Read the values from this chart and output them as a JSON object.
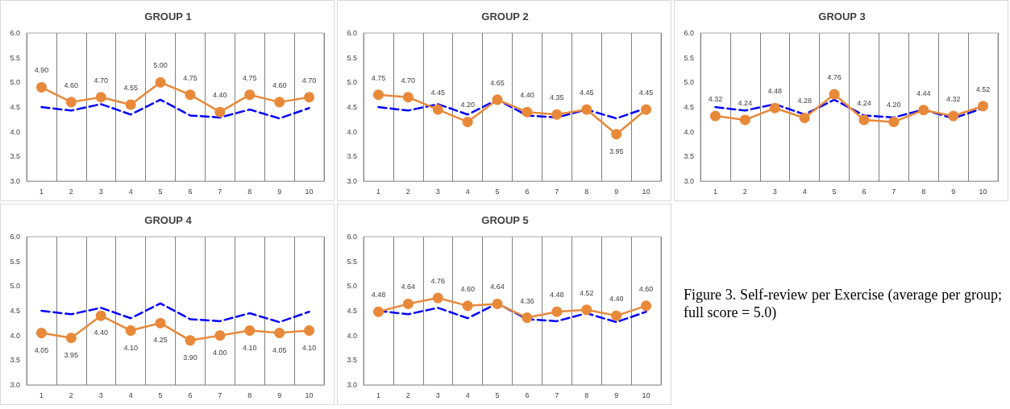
{
  "chart_data": [
    {
      "type": "line",
      "title": "GROUP 1",
      "categories": [
        "1",
        "2",
        "3",
        "4",
        "5",
        "6",
        "7",
        "8",
        "9",
        "10"
      ],
      "ylim": [
        3,
        6
      ],
      "yticks": [
        {
          "value": 3,
          "label": "3.0"
        },
        {
          "value": 3.5,
          "label": "3.5"
        },
        {
          "value": 4,
          "label": "4.0"
        },
        {
          "value": 4.5,
          "label": "4.5"
        },
        {
          "value": 5,
          "label": "5.0"
        },
        {
          "value": 5.5,
          "label": "5.5"
        },
        {
          "value": 6,
          "label": "6.0"
        }
      ],
      "grid": "x",
      "series": [
        {
          "color": "#0000ff",
          "line_style": "dashed",
          "marker": "none",
          "values": [
            4.5,
            4.43,
            4.56,
            4.35,
            4.65,
            4.33,
            4.29,
            4.45,
            4.27,
            4.48
          ]
        },
        {
          "color": "#e8893a",
          "line_style": "solid",
          "marker": "circle",
          "values": [
            4.9,
            4.6,
            4.7,
            4.55,
            5.0,
            4.75,
            4.4,
            4.75,
            4.6,
            4.7
          ],
          "value_labels": [
            "4.90",
            "4.60",
            "4.70",
            "4.55",
            "5.00",
            "4.75",
            "4.40",
            "4.75",
            "4.60",
            "4.70"
          ]
        }
      ]
    },
    {
      "type": "line",
      "title": "GROUP 2",
      "categories": [
        "1",
        "2",
        "3",
        "4",
        "5",
        "6",
        "7",
        "8",
        "9",
        "10"
      ],
      "ylim": [
        3,
        6
      ],
      "yticks": [
        {
          "value": 3,
          "label": "3.0"
        },
        {
          "value": 3.5,
          "label": "3.5"
        },
        {
          "value": 4,
          "label": "4.0"
        },
        {
          "value": 4.5,
          "label": "4.5"
        },
        {
          "value": 5,
          "label": "5.0"
        },
        {
          "value": 5.5,
          "label": "5.5"
        },
        {
          "value": 6,
          "label": "6.0"
        }
      ],
      "grid": "x",
      "series": [
        {
          "color": "#0000ff",
          "line_style": "dashed",
          "marker": "none",
          "values": [
            4.5,
            4.43,
            4.56,
            4.35,
            4.65,
            4.33,
            4.29,
            4.45,
            4.27,
            4.48
          ]
        },
        {
          "color": "#e8893a",
          "line_style": "solid",
          "marker": "circle",
          "values": [
            4.75,
            4.7,
            4.45,
            4.2,
            4.65,
            4.4,
            4.35,
            4.45,
            3.95,
            4.45
          ],
          "value_labels": [
            "4.75",
            "4.70",
            "4.45",
            "4.20",
            "4.65",
            "4.40",
            "4.35",
            "4.45",
            "3.95",
            "4.45"
          ]
        }
      ]
    },
    {
      "type": "line",
      "title": "GROUP 3",
      "categories": [
        "1",
        "2",
        "3",
        "4",
        "5",
        "6",
        "7",
        "8",
        "9",
        "10"
      ],
      "ylim": [
        3,
        6
      ],
      "yticks": [
        {
          "value": 3,
          "label": "3.0"
        },
        {
          "value": 3.5,
          "label": "3.5"
        },
        {
          "value": 4,
          "label": "4.0"
        },
        {
          "value": 4.5,
          "label": "4.5"
        },
        {
          "value": 5,
          "label": "5.0"
        },
        {
          "value": 5.5,
          "label": "5.5"
        },
        {
          "value": 6,
          "label": "6.0"
        }
      ],
      "grid": "x",
      "series": [
        {
          "color": "#0000ff",
          "line_style": "dashed",
          "marker": "none",
          "values": [
            4.5,
            4.43,
            4.56,
            4.35,
            4.65,
            4.33,
            4.29,
            4.45,
            4.27,
            4.48
          ]
        },
        {
          "color": "#e8893a",
          "line_style": "solid",
          "marker": "circle",
          "values": [
            4.32,
            4.24,
            4.48,
            4.28,
            4.76,
            4.24,
            4.2,
            4.44,
            4.32,
            4.52
          ],
          "value_labels": [
            "4.32",
            "4.24",
            "4.48",
            "4.28",
            "4.76",
            "4.24",
            "4.20",
            "4.44",
            "4.32",
            "4.52"
          ]
        }
      ]
    },
    {
      "type": "line",
      "title": "GROUP 4",
      "categories": [
        "1",
        "2",
        "3",
        "4",
        "5",
        "6",
        "7",
        "8",
        "9",
        "10"
      ],
      "ylim": [
        3,
        6
      ],
      "yticks": [
        {
          "value": 3,
          "label": "3.0"
        },
        {
          "value": 3.5,
          "label": "3.5"
        },
        {
          "value": 4,
          "label": "4.0"
        },
        {
          "value": 4.5,
          "label": "4.5"
        },
        {
          "value": 5,
          "label": "5.0"
        },
        {
          "value": 5.5,
          "label": "5.5"
        },
        {
          "value": 6,
          "label": "6.0"
        }
      ],
      "grid": "x",
      "series": [
        {
          "color": "#0000ff",
          "line_style": "dashed",
          "marker": "none",
          "values": [
            4.5,
            4.43,
            4.56,
            4.35,
            4.65,
            4.33,
            4.29,
            4.45,
            4.27,
            4.48
          ]
        },
        {
          "color": "#e8893a",
          "line_style": "solid",
          "marker": "circle",
          "values": [
            4.05,
            3.95,
            4.4,
            4.1,
            4.25,
            3.9,
            4.0,
            4.1,
            4.05,
            4.1
          ],
          "value_labels": [
            "4.05",
            "3.95",
            "4.40",
            "4.10",
            "4.25",
            "3.90",
            "4.00",
            "4.10",
            "4.05",
            "4.10"
          ]
        }
      ]
    },
    {
      "type": "line",
      "title": "GROUP 5",
      "categories": [
        "1",
        "2",
        "3",
        "4",
        "5",
        "6",
        "7",
        "8",
        "9",
        "10"
      ],
      "ylim": [
        3,
        6
      ],
      "yticks": [
        {
          "value": 3,
          "label": "3.0"
        },
        {
          "value": 3.5,
          "label": "3.5"
        },
        {
          "value": 4,
          "label": "4.0"
        },
        {
          "value": 4.5,
          "label": "4.5"
        },
        {
          "value": 5,
          "label": "5.0"
        },
        {
          "value": 5.5,
          "label": "5.5"
        },
        {
          "value": 6,
          "label": "6.0"
        }
      ],
      "grid": "x",
      "series": [
        {
          "color": "#0000ff",
          "line_style": "dashed",
          "marker": "none",
          "values": [
            4.5,
            4.43,
            4.56,
            4.35,
            4.65,
            4.33,
            4.29,
            4.45,
            4.27,
            4.48
          ]
        },
        {
          "color": "#e8893a",
          "line_style": "solid",
          "marker": "circle",
          "values": [
            4.48,
            4.64,
            4.76,
            4.6,
            4.64,
            4.36,
            4.48,
            4.52,
            4.4,
            4.6
          ],
          "value_labels": [
            "4.48",
            "4.64",
            "4.76",
            "4.60",
            "4.64",
            "4.36",
            "4.48",
            "4.52",
            "4.40",
            "4.60"
          ]
        }
      ]
    },
    {
      "type": "other",
      "annotations": [
        "Figure 3. Self-review per Exercise (average per group; full score = 5.0)"
      ]
    }
  ]
}
